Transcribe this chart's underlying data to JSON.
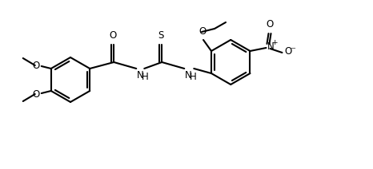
{
  "figsize": [
    4.66,
    2.12
  ],
  "dpi": 100,
  "bg_color": "#ffffff",
  "lc": "#000000",
  "lw": 1.5,
  "fs": 8.5,
  "ring_r": 28,
  "xlim": [
    0,
    466
  ],
  "ylim": [
    0,
    212
  ]
}
